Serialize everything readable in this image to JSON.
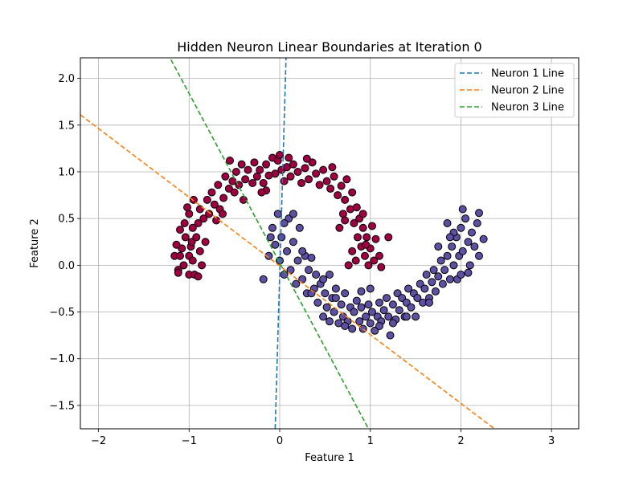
{
  "chart_data": {
    "type": "scatter",
    "title": "Hidden Neuron Linear Boundaries at Iteration 0",
    "xlabel": "Feature 1",
    "ylabel": "Feature 2",
    "xlim": [
      -2.2,
      3.3
    ],
    "ylim": [
      -1.75,
      2.22
    ],
    "xticks": [
      -2,
      -1,
      0,
      1,
      2,
      3
    ],
    "xtick_labels": [
      "−2",
      "−1",
      "0",
      "1",
      "2",
      "3"
    ],
    "yticks": [
      -1.5,
      -1.0,
      -0.5,
      0.0,
      0.5,
      1.0,
      1.5,
      2.0
    ],
    "ytick_labels": [
      "−1.5",
      "−1.0",
      "−0.5",
      "0.0",
      "0.5",
      "1.0",
      "1.5",
      "2.0"
    ],
    "grid": true,
    "legend_position": "top-right",
    "lines": [
      {
        "name": "Neuron 1 Line",
        "color": "#1f77b4",
        "style": "dashed",
        "points": [
          [
            -0.05,
            -1.75
          ],
          [
            0.07,
            2.22
          ]
        ]
      },
      {
        "name": "Neuron 2 Line",
        "color": "#ff7f0e",
        "style": "dashed",
        "points": [
          [
            -2.2,
            1.61
          ],
          [
            2.37,
            -1.75
          ]
        ]
      },
      {
        "name": "Neuron 3 Line",
        "color": "#2ca02c",
        "style": "dashed",
        "points": [
          [
            -1.2,
            2.2
          ],
          [
            0.98,
            -1.75
          ]
        ]
      }
    ],
    "series": [
      {
        "color": "#9e0142",
        "points": [
          [
            -1.16,
            0.1
          ],
          [
            -1.1,
            0.1
          ],
          [
            -1.06,
            0.0
          ],
          [
            -1.12,
            -0.05
          ],
          [
            -1.08,
            0.18
          ],
          [
            -1.04,
            0.3
          ],
          [
            -1.0,
            0.1
          ],
          [
            -0.98,
            0.2
          ],
          [
            -1.0,
            -0.1
          ],
          [
            -0.94,
            -0.1
          ],
          [
            -0.96,
            0.05
          ],
          [
            -1.1,
            0.38
          ],
          [
            -1.05,
            0.45
          ],
          [
            -1.0,
            0.55
          ],
          [
            -0.96,
            0.4
          ],
          [
            -1.02,
            0.62
          ],
          [
            -0.97,
            0.25
          ],
          [
            -0.92,
            0.3
          ],
          [
            -0.9,
            0.45
          ],
          [
            -0.88,
            0.15
          ],
          [
            -0.86,
            0.0
          ],
          [
            -0.82,
            0.25
          ],
          [
            -0.95,
            0.7
          ],
          [
            -0.88,
            0.6
          ],
          [
            -0.84,
            0.5
          ],
          [
            -0.8,
            0.7
          ],
          [
            -0.78,
            0.55
          ],
          [
            -0.75,
            0.78
          ],
          [
            -0.72,
            0.65
          ],
          [
            -0.7,
            0.48
          ],
          [
            -0.66,
            0.6
          ],
          [
            -0.62,
            0.72
          ],
          [
            -0.68,
            0.86
          ],
          [
            -0.6,
            0.95
          ],
          [
            -0.56,
            0.82
          ],
          [
            -0.52,
            0.9
          ],
          [
            -0.48,
            1.0
          ],
          [
            -0.45,
            0.86
          ],
          [
            -0.42,
            1.08
          ],
          [
            -0.38,
            0.92
          ],
          [
            -0.35,
            1.02
          ],
          [
            -0.3,
            0.88
          ],
          [
            -0.28,
            1.1
          ],
          [
            -0.25,
            0.95
          ],
          [
            -0.22,
            1.02
          ],
          [
            -0.18,
            0.88
          ],
          [
            -0.15,
            1.08
          ],
          [
            -0.12,
            0.96
          ],
          [
            -0.08,
            1.15
          ],
          [
            -0.05,
            0.98
          ],
          [
            -0.02,
            1.12
          ],
          [
            0.02,
            1.02
          ],
          [
            0.05,
            0.9
          ],
          [
            0.08,
            1.05
          ],
          [
            0.12,
            0.95
          ],
          [
            0.15,
            1.08
          ],
          [
            0.2,
            1.0
          ],
          [
            0.24,
            0.88
          ],
          [
            0.28,
            1.04
          ],
          [
            0.32,
            0.92
          ],
          [
            0.36,
            1.1
          ],
          [
            0.4,
            0.98
          ],
          [
            0.44,
            0.86
          ],
          [
            0.48,
            1.02
          ],
          [
            0.52,
            0.9
          ],
          [
            0.56,
            0.82
          ],
          [
            0.6,
            0.95
          ],
          [
            0.64,
            0.75
          ],
          [
            0.68,
            0.85
          ],
          [
            0.72,
            0.7
          ],
          [
            0.74,
            0.92
          ],
          [
            0.78,
            0.6
          ],
          [
            0.8,
            0.78
          ],
          [
            0.82,
            0.45
          ],
          [
            0.85,
            0.62
          ],
          [
            0.86,
            0.3
          ],
          [
            0.88,
            0.5
          ],
          [
            0.9,
            0.2
          ],
          [
            0.92,
            0.4
          ],
          [
            0.94,
            0.1
          ],
          [
            0.96,
            0.3
          ],
          [
            0.98,
            0.0
          ],
          [
            1.0,
            0.18
          ],
          [
            1.04,
            0.05
          ],
          [
            1.06,
            0.28
          ],
          [
            1.1,
            0.1
          ],
          [
            1.12,
            -0.02
          ],
          [
            0.84,
            0.05
          ],
          [
            0.8,
            0.15
          ],
          [
            0.76,
            0.0
          ],
          [
            1.2,
            0.3
          ],
          [
            0.7,
            0.55
          ],
          [
            0.66,
            0.4
          ],
          [
            -0.55,
            1.12
          ],
          [
            -0.5,
            0.78
          ],
          [
            -0.4,
            0.7
          ],
          [
            -0.15,
            0.8
          ],
          [
            0.0,
            1.18
          ],
          [
            0.1,
            1.15
          ],
          [
            0.3,
            1.14
          ],
          [
            -1.14,
            0.22
          ],
          [
            -1.12,
            -0.08
          ],
          [
            -0.9,
            -0.12
          ],
          [
            -0.63,
            0.55
          ],
          [
            0.58,
            1.05
          ],
          [
            0.92,
            0.55
          ],
          [
            1.02,
            0.42
          ],
          [
            0.72,
            0.48
          ],
          [
            -0.2,
            0.78
          ],
          [
            0.95,
            0.22
          ]
        ]
      },
      {
        "color": "#5e4fa2",
        "points": [
          [
            -0.18,
            -0.15
          ],
          [
            -0.12,
            0.1
          ],
          [
            -0.08,
            0.4
          ],
          [
            -0.05,
            0.22
          ],
          [
            -0.02,
            0.55
          ],
          [
            0.0,
            0.05
          ],
          [
            0.02,
            0.3
          ],
          [
            0.05,
            -0.1
          ],
          [
            0.08,
            0.15
          ],
          [
            0.1,
            0.5
          ],
          [
            0.12,
            -0.05
          ],
          [
            0.15,
            0.25
          ],
          [
            0.18,
            -0.2
          ],
          [
            0.2,
            0.05
          ],
          [
            0.22,
            0.4
          ],
          [
            0.25,
            -0.15
          ],
          [
            0.28,
            0.1
          ],
          [
            0.3,
            -0.3
          ],
          [
            0.32,
            -0.05
          ],
          [
            0.35,
            0.08
          ],
          [
            0.38,
            -0.25
          ],
          [
            0.4,
            -0.1
          ],
          [
            0.42,
            -0.4
          ],
          [
            0.45,
            -0.2
          ],
          [
            0.48,
            -0.55
          ],
          [
            0.5,
            -0.3
          ],
          [
            0.52,
            -0.45
          ],
          [
            0.55,
            -0.6
          ],
          [
            0.58,
            -0.35
          ],
          [
            0.6,
            -0.5
          ],
          [
            0.62,
            -0.25
          ],
          [
            0.65,
            -0.62
          ],
          [
            0.68,
            -0.42
          ],
          [
            0.7,
            -0.55
          ],
          [
            0.72,
            -0.3
          ],
          [
            0.75,
            -0.6
          ],
          [
            0.78,
            -0.45
          ],
          [
            0.8,
            -0.68
          ],
          [
            0.82,
            -0.5
          ],
          [
            0.85,
            -0.38
          ],
          [
            0.88,
            -0.6
          ],
          [
            0.9,
            -0.45
          ],
          [
            0.92,
            -0.68
          ],
          [
            0.95,
            -0.55
          ],
          [
            0.98,
            -0.42
          ],
          [
            1.0,
            -0.62
          ],
          [
            1.02,
            -0.5
          ],
          [
            1.05,
            -0.7
          ],
          [
            1.08,
            -0.55
          ],
          [
            1.1,
            -0.4
          ],
          [
            1.12,
            -0.6
          ],
          [
            1.15,
            -0.48
          ],
          [
            1.18,
            -0.35
          ],
          [
            1.2,
            -0.55
          ],
          [
            1.22,
            -0.75
          ],
          [
            1.25,
            -0.42
          ],
          [
            1.28,
            -0.58
          ],
          [
            1.3,
            -0.3
          ],
          [
            1.32,
            -0.48
          ],
          [
            1.35,
            -0.35
          ],
          [
            1.38,
            -0.55
          ],
          [
            1.4,
            -0.4
          ],
          [
            1.42,
            -0.25
          ],
          [
            1.45,
            -0.45
          ],
          [
            1.48,
            -0.3
          ],
          [
            1.5,
            -0.55
          ],
          [
            1.52,
            -0.35
          ],
          [
            1.55,
            -0.2
          ],
          [
            1.58,
            -0.4
          ],
          [
            1.6,
            -0.25
          ],
          [
            1.62,
            -0.1
          ],
          [
            1.65,
            -0.35
          ],
          [
            1.68,
            -0.18
          ],
          [
            1.7,
            -0.05
          ],
          [
            1.72,
            -0.28
          ],
          [
            1.75,
            -0.12
          ],
          [
            1.78,
            0.05
          ],
          [
            1.8,
            -0.2
          ],
          [
            1.82,
            -0.05
          ],
          [
            1.85,
            0.1
          ],
          [
            1.88,
            -0.15
          ],
          [
            1.9,
            0.2
          ],
          [
            1.92,
            0.0
          ],
          [
            1.95,
            0.3
          ],
          [
            1.98,
            0.1
          ],
          [
            2.0,
            0.4
          ],
          [
            2.02,
            0.15
          ],
          [
            2.05,
            0.5
          ],
          [
            2.08,
            0.25
          ],
          [
            2.1,
            0.0
          ],
          [
            2.12,
            0.35
          ],
          [
            2.15,
            0.2
          ],
          [
            2.18,
            0.45
          ],
          [
            2.2,
            0.1
          ],
          [
            2.25,
            0.28
          ],
          [
            2.02,
            0.6
          ],
          [
            2.2,
            0.56
          ],
          [
            1.85,
            0.45
          ],
          [
            1.92,
            0.35
          ],
          [
            1.96,
            -0.15
          ],
          [
            2.08,
            -0.08
          ],
          [
            -0.1,
            0.3
          ],
          [
            0.05,
            0.45
          ],
          [
            0.15,
            0.55
          ],
          [
            0.25,
            0.15
          ],
          [
            0.35,
            -0.3
          ],
          [
            0.55,
            -0.1
          ],
          [
            0.72,
            -0.65
          ],
          [
            1.0,
            -0.25
          ],
          [
            1.25,
            -0.62
          ],
          [
            1.4,
            -0.55
          ],
          [
            1.75,
            0.2
          ],
          [
            1.65,
            -0.4
          ],
          [
            2.0,
            -0.1
          ],
          [
            1.88,
            0.3
          ],
          [
            0.48,
            -0.15
          ],
          [
            0.62,
            -0.35
          ],
          [
            0.9,
            -0.28
          ],
          [
            1.1,
            -0.65
          ]
        ]
      }
    ]
  }
}
